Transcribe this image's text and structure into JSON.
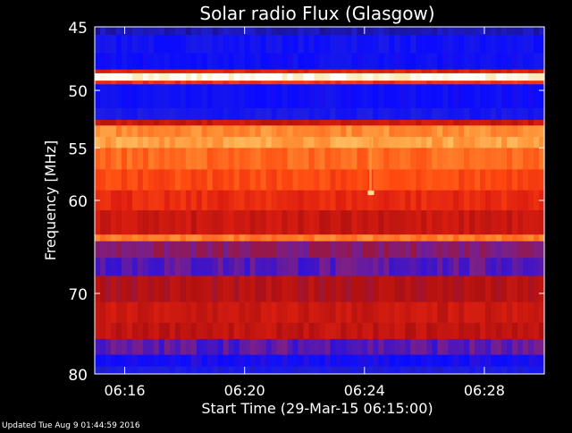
{
  "chart_data": {
    "type": "heatmap",
    "title": "Solar radio Flux (Glasgow)",
    "xlabel": "Start Time (29-Mar-15 06:15:00)",
    "ylabel": "Frequency [MHz]",
    "x_ticks": [
      "06:16",
      "06:20",
      "06:24",
      "06:28"
    ],
    "x_tick_minutes": [
      1,
      5,
      9,
      13
    ],
    "xlim_minutes_after_start": [
      0,
      15
    ],
    "y_ticks": [
      45,
      50,
      55,
      60,
      70,
      80
    ],
    "ylim": [
      45,
      80
    ],
    "y_scale": "log",
    "colormap": [
      "#1a0f8c",
      "#2020e0",
      "#0a0aff",
      "#7a1f8a",
      "#b01010",
      "#e02010",
      "#ff4a10",
      "#ff8a30",
      "#ffd070",
      "#ffffff"
    ],
    "bands": [
      {
        "freq_low": 45.0,
        "freq_high": 45.6,
        "level": 0.05
      },
      {
        "freq_low": 45.6,
        "freq_high": 47.0,
        "level": 0.18
      },
      {
        "freq_low": 47.0,
        "freq_high": 48.3,
        "level": 0.2
      },
      {
        "freq_low": 48.3,
        "freq_high": 48.6,
        "level": 0.55
      },
      {
        "freq_low": 48.6,
        "freq_high": 49.2,
        "level": 0.98
      },
      {
        "freq_low": 49.2,
        "freq_high": 49.5,
        "level": 0.6
      },
      {
        "freq_low": 49.5,
        "freq_high": 51.5,
        "level": 0.2
      },
      {
        "freq_low": 51.5,
        "freq_high": 52.5,
        "level": 0.15
      },
      {
        "freq_low": 52.5,
        "freq_high": 53.0,
        "level": 0.5
      },
      {
        "freq_low": 53.0,
        "freq_high": 54.0,
        "level": 0.78
      },
      {
        "freq_low": 54.0,
        "freq_high": 55.0,
        "level": 0.82
      },
      {
        "freq_low": 55.0,
        "freq_high": 57.0,
        "level": 0.72
      },
      {
        "freq_low": 57.0,
        "freq_high": 59.0,
        "level": 0.66
      },
      {
        "freq_low": 59.0,
        "freq_high": 61.0,
        "level": 0.58
      },
      {
        "freq_low": 61.0,
        "freq_high": 63.5,
        "level": 0.5
      },
      {
        "freq_low": 63.5,
        "freq_high": 64.2,
        "level": 0.75
      },
      {
        "freq_low": 64.2,
        "freq_high": 66.0,
        "level": 0.36
      },
      {
        "freq_low": 66.0,
        "freq_high": 68.0,
        "level": 0.3
      },
      {
        "freq_low": 68.0,
        "freq_high": 71.0,
        "level": 0.45
      },
      {
        "freq_low": 71.0,
        "freq_high": 73.5,
        "level": 0.5
      },
      {
        "freq_low": 73.5,
        "freq_high": 75.5,
        "level": 0.48
      },
      {
        "freq_low": 75.5,
        "freq_high": 77.5,
        "level": 0.3
      },
      {
        "freq_low": 77.5,
        "freq_high": 79.0,
        "level": 0.22
      },
      {
        "freq_low": 79.0,
        "freq_high": 80.0,
        "level": 0.12
      }
    ],
    "burst": {
      "minute": 9.2,
      "freq_low": 54.0,
      "freq_high": 59.5,
      "peak_freq": 59.2,
      "level": 0.92
    }
  },
  "footer": {
    "updated": "Updated Tue Aug  9 01:44:59 2016"
  }
}
